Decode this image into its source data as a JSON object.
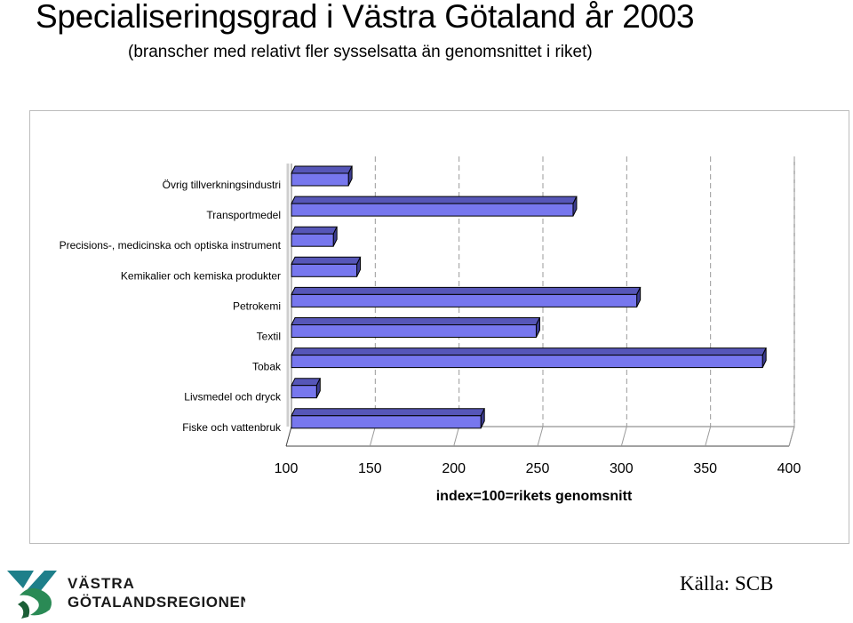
{
  "title": "Specialiseringsgrad i Västra Götaland år 2003",
  "subtitle": "(branscher med relativt fler sysselsatta än genomsnittet i riket)",
  "logo": {
    "line1": "VÄSTRA",
    "line2": "GÖTALANDSREGIONEN"
  },
  "source": "Källa: SCB",
  "chart_data": {
    "type": "bar",
    "orientation": "horizontal",
    "three_d": true,
    "categories": [
      "Övrig tillverkningsindustri",
      "Transportmedel",
      "Precisions-, medicinska och optiska instrument",
      "Kemikalier och kemiska produkter",
      "Petrokemi",
      "Textil",
      "Tobak",
      "Livsmedel och dryck",
      "Fiske och vattenbruk"
    ],
    "values": [
      134,
      268,
      125,
      139,
      306,
      246,
      381,
      115,
      213
    ],
    "xlabel": "index=100=rikets genomsnitt",
    "xlim": [
      100,
      400
    ],
    "xticks": [
      "100",
      "150",
      "200",
      "250",
      "300",
      "350",
      "400"
    ],
    "grid": "vertical dashed",
    "colors": {
      "bar": "#7777ee",
      "bar_top": "#5656b8",
      "bar_side": "#3c3c90",
      "outline": "#000000"
    }
  }
}
